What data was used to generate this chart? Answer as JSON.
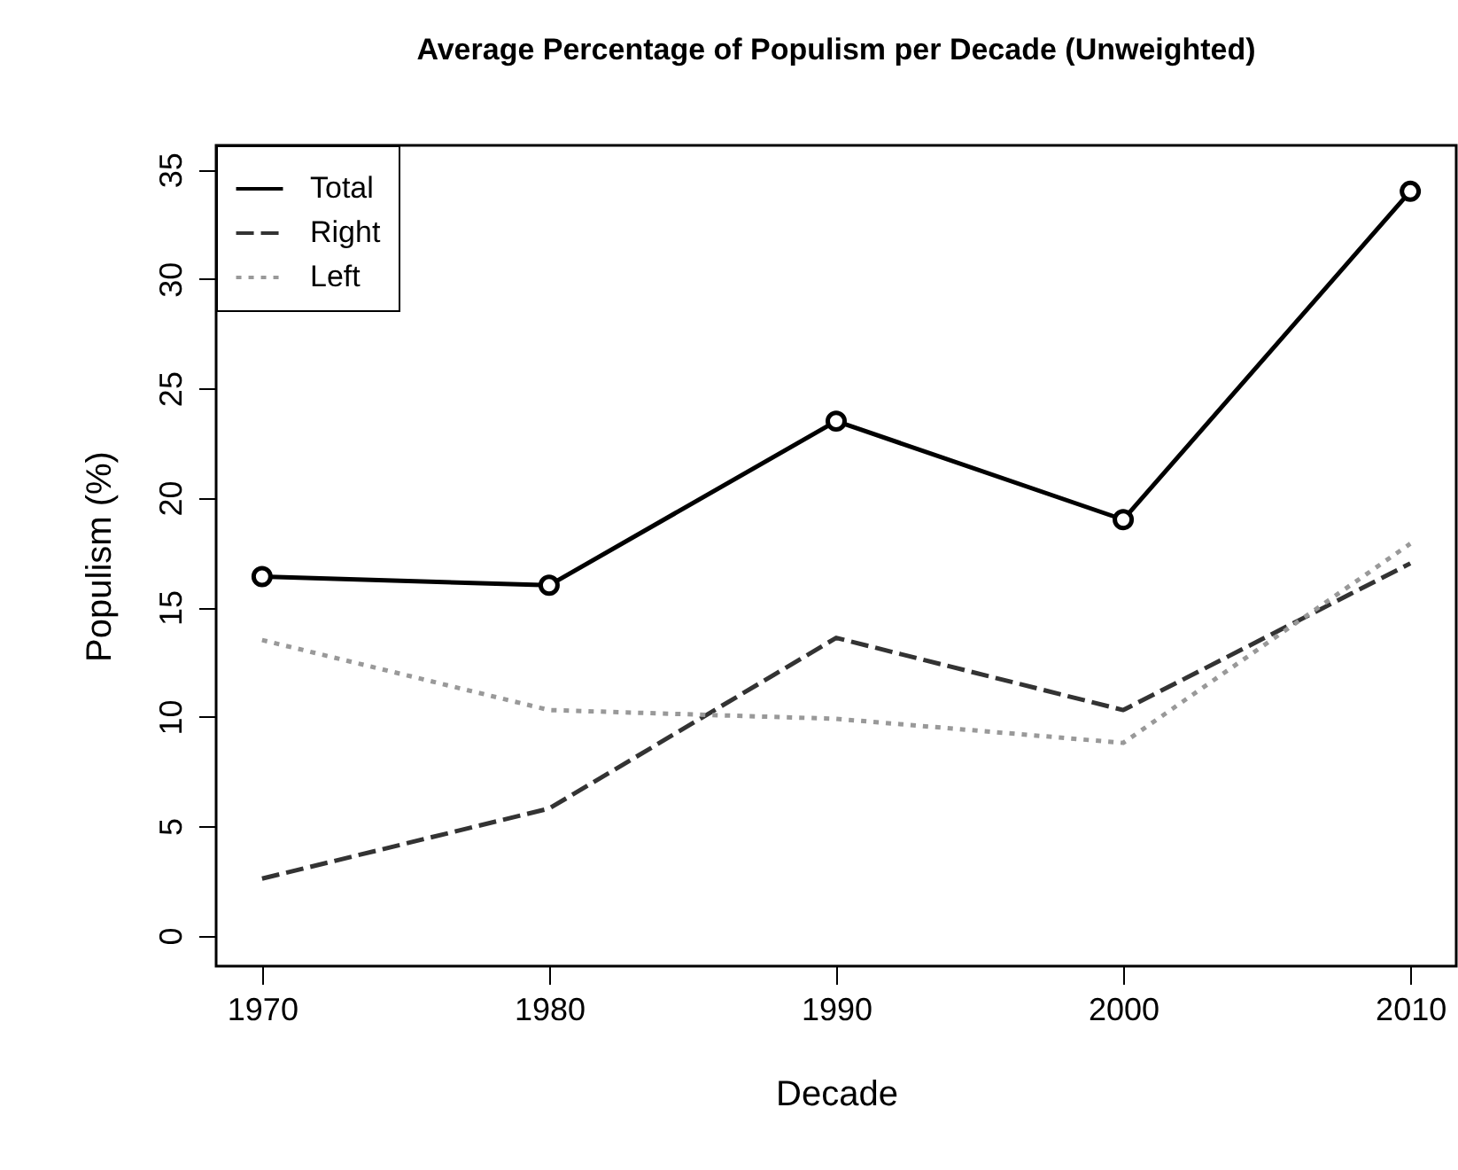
{
  "chart_data": {
    "type": "line",
    "title": "Average Percentage of Populism per Decade (Unweighted)",
    "xlabel": "Decade",
    "ylabel": "Populism (%)",
    "x": [
      1970,
      1980,
      1990,
      2000,
      2010
    ],
    "series": [
      {
        "name": "Total",
        "color": "#000000",
        "line_style": "solid",
        "marker": "circle",
        "values": [
          16.4,
          16.0,
          23.5,
          19.0,
          34.0
        ]
      },
      {
        "name": "Right",
        "color": "#333333",
        "line_style": "dashed",
        "values": [
          2.6,
          5.8,
          13.6,
          10.3,
          17.0
        ]
      },
      {
        "name": "Left",
        "color": "#999999",
        "line_style": "dotted",
        "values": [
          13.5,
          10.3,
          9.9,
          8.8,
          17.9
        ]
      }
    ],
    "xlim": [
      1968.4,
      2011.6
    ],
    "xticks": [
      1970,
      1980,
      1990,
      2000,
      2010
    ],
    "ylim": [
      -1.4,
      36.1
    ],
    "yticks": [
      0,
      5,
      10,
      15,
      20,
      25,
      30,
      35
    ],
    "grid": false,
    "legend": "top left"
  }
}
